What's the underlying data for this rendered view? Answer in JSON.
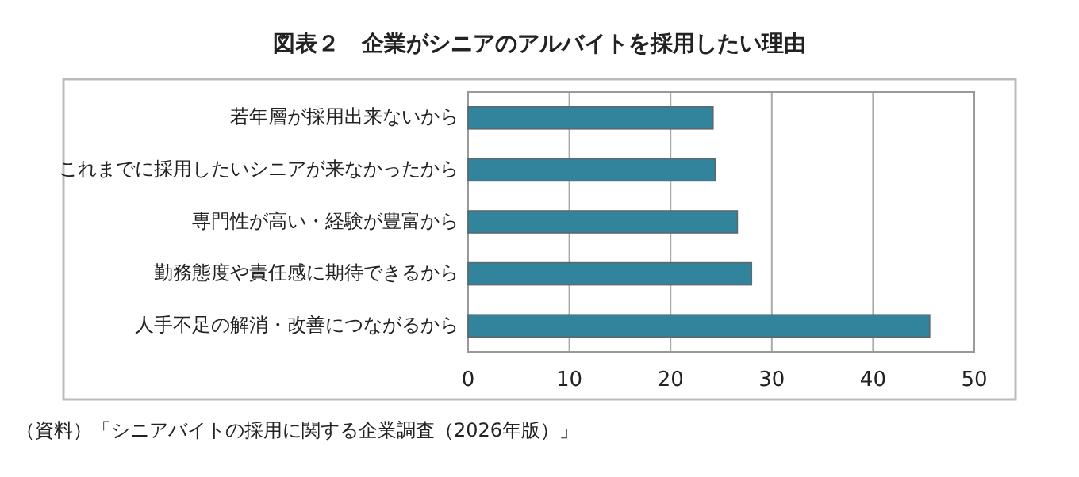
{
  "chart_data": {
    "type": "bar",
    "orientation": "horizontal",
    "title": "図表２　企業がシニアのアルバイトを採用したい理由",
    "categories": [
      "若年層が採用出来ないから",
      "これまでに採用したいシニアが来なかったから",
      "専門性が高い・経験が豊富から",
      "勤務態度や責任感に期待できるから",
      "人手不足の解消・改善につながるから"
    ],
    "values": [
      24.2,
      24.4,
      26.6,
      28.0,
      45.6
    ],
    "color": "#31849b",
    "xlim": [
      0,
      50
    ],
    "xticks": [
      0,
      10,
      20,
      30,
      40,
      50
    ],
    "grid": "x",
    "annotations": [
      "（資料）「シニアバイトの採用に関する企業調査（2026年版）」"
    ]
  }
}
